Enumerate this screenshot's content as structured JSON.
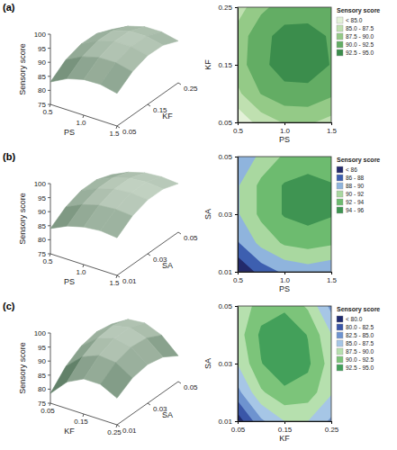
{
  "chart_data": [
    {
      "type": "surface_contour",
      "panel_label": "(a)",
      "x_label": "PS",
      "y_label": "KF",
      "z_label": "Sensory score",
      "xlim": [
        0.5,
        1.5
      ],
      "ylim": [
        0.05,
        0.25
      ],
      "zlim": [
        75,
        100
      ],
      "xticks": [
        0.5,
        {
          "value": 1,
          "label": "1.0"
        },
        1.5
      ],
      "yticks": [
        0.05,
        0.15,
        0.25
      ],
      "zticks": [
        75,
        80,
        85,
        90,
        95,
        100
      ],
      "x": [
        0.5,
        0.75,
        1,
        1.25,
        1.5
      ],
      "y": [
        0.05,
        0.1,
        0.15,
        0.2,
        0.25
      ],
      "z": [
        [
          83.0,
          86.1,
          87.7,
          87.9,
          86.6
        ],
        [
          87.0,
          90.1,
          91.7,
          91.8,
          90.5
        ],
        [
          88.8,
          91.9,
          93.6,
          93.7,
          92.4
        ],
        [
          88.6,
          91.7,
          93.4,
          93.5,
          92.2
        ],
        [
          86.3,
          89.4,
          91.1,
          91.2,
          89.9
        ]
      ],
      "legend_title": "Sensory score",
      "levels": [
        85,
        87.5,
        90,
        92.5,
        95
      ],
      "level_labels": [
        "< 85.0",
        "85.0 - 87.5",
        "87.5 - 90.0",
        "90.0 - 92.5",
        "92.5 - 95.0"
      ],
      "colors": [
        "#e3f1d8",
        "#bfe0b0",
        "#94ca87",
        "#63ad64",
        "#3b8d4c"
      ]
    },
    {
      "type": "surface_contour",
      "panel_label": "(b)",
      "x_label": "PS",
      "y_label": "SA",
      "z_label": "Sensory score",
      "xlim": [
        0.5,
        1.5
      ],
      "ylim": [
        0.01,
        0.05
      ],
      "zlim": [
        75,
        100
      ],
      "xticks": [
        0.5,
        {
          "value": 1,
          "label": "1.0"
        },
        1.5
      ],
      "yticks": [
        0.01,
        0.03,
        0.05
      ],
      "zticks": [
        75,
        80,
        85,
        90,
        95,
        100
      ],
      "x": [
        0.5,
        0.75,
        1,
        1.25,
        1.5
      ],
      "y": [
        0.01,
        0.02,
        0.03,
        0.04,
        0.05
      ],
      "z": [
        [
          84.0,
          86.8,
          88.4,
          89.0,
          88.4
        ],
        [
          87.8,
          90.6,
          92.3,
          92.8,
          92.3
        ],
        [
          89.8,
          92.5,
          94.2,
          94.8,
          94.2
        ],
        [
          89.8,
          92.5,
          94.2,
          94.8,
          94.2
        ],
        [
          87.8,
          90.6,
          92.3,
          92.8,
          92.3
        ]
      ],
      "legend_title": "Sensory score",
      "levels": [
        86,
        88,
        90,
        92,
        94,
        96
      ],
      "level_labels": [
        "< 86",
        "86 - 88",
        "88 - 90",
        "90 - 92",
        "92 - 94",
        "94 - 96"
      ],
      "colors": [
        "#232a6b",
        "#3d5fb0",
        "#8fb4dd",
        "#a9d8a0",
        "#6dbb6f",
        "#3f9452"
      ]
    },
    {
      "type": "surface_contour",
      "panel_label": "(c)",
      "x_label": "KF",
      "y_label": "SA",
      "z_label": "Sensory score",
      "xlim": [
        0.05,
        0.25
      ],
      "ylim": [
        0.01,
        0.05
      ],
      "zlim": [
        75,
        100
      ],
      "xticks": [
        0.05,
        0.15,
        0.25
      ],
      "yticks": [
        0.01,
        0.03,
        0.05
      ],
      "zticks": [
        75,
        80,
        85,
        90,
        95,
        100
      ],
      "x": [
        0.05,
        0.1,
        0.15,
        0.2,
        0.25
      ],
      "y": [
        0.01,
        0.02,
        0.03,
        0.04,
        0.05
      ],
      "z": [
        [
          78.5,
          84.5,
          87.5,
          87.5,
          84.5
        ],
        [
          84.2,
          89.6,
          92.0,
          91.4,
          87.8
        ],
        [
          87.6,
          92.4,
          94.2,
          93.0,
          88.8
        ],
        [
          88.8,
          93.0,
          94.2,
          92.4,
          87.6
        ],
        [
          87.8,
          91.4,
          92.0,
          89.6,
          84.2
        ]
      ],
      "legend_title": "Sensory score",
      "levels": [
        80,
        82.5,
        85,
        87.5,
        90,
        92.5,
        95
      ],
      "level_labels": [
        "< 80.0",
        "80.0 - 82.5",
        "82.5 - 85.0",
        "85.0 - 87.5",
        "87.5 - 90.0",
        "90.0 - 92.5",
        "92.5 - 95.0"
      ],
      "colors": [
        "#1f2a6e",
        "#3a56a8",
        "#6e93cf",
        "#a6c6e6",
        "#b6e0ae",
        "#7cc47a",
        "#43a05a"
      ]
    }
  ]
}
